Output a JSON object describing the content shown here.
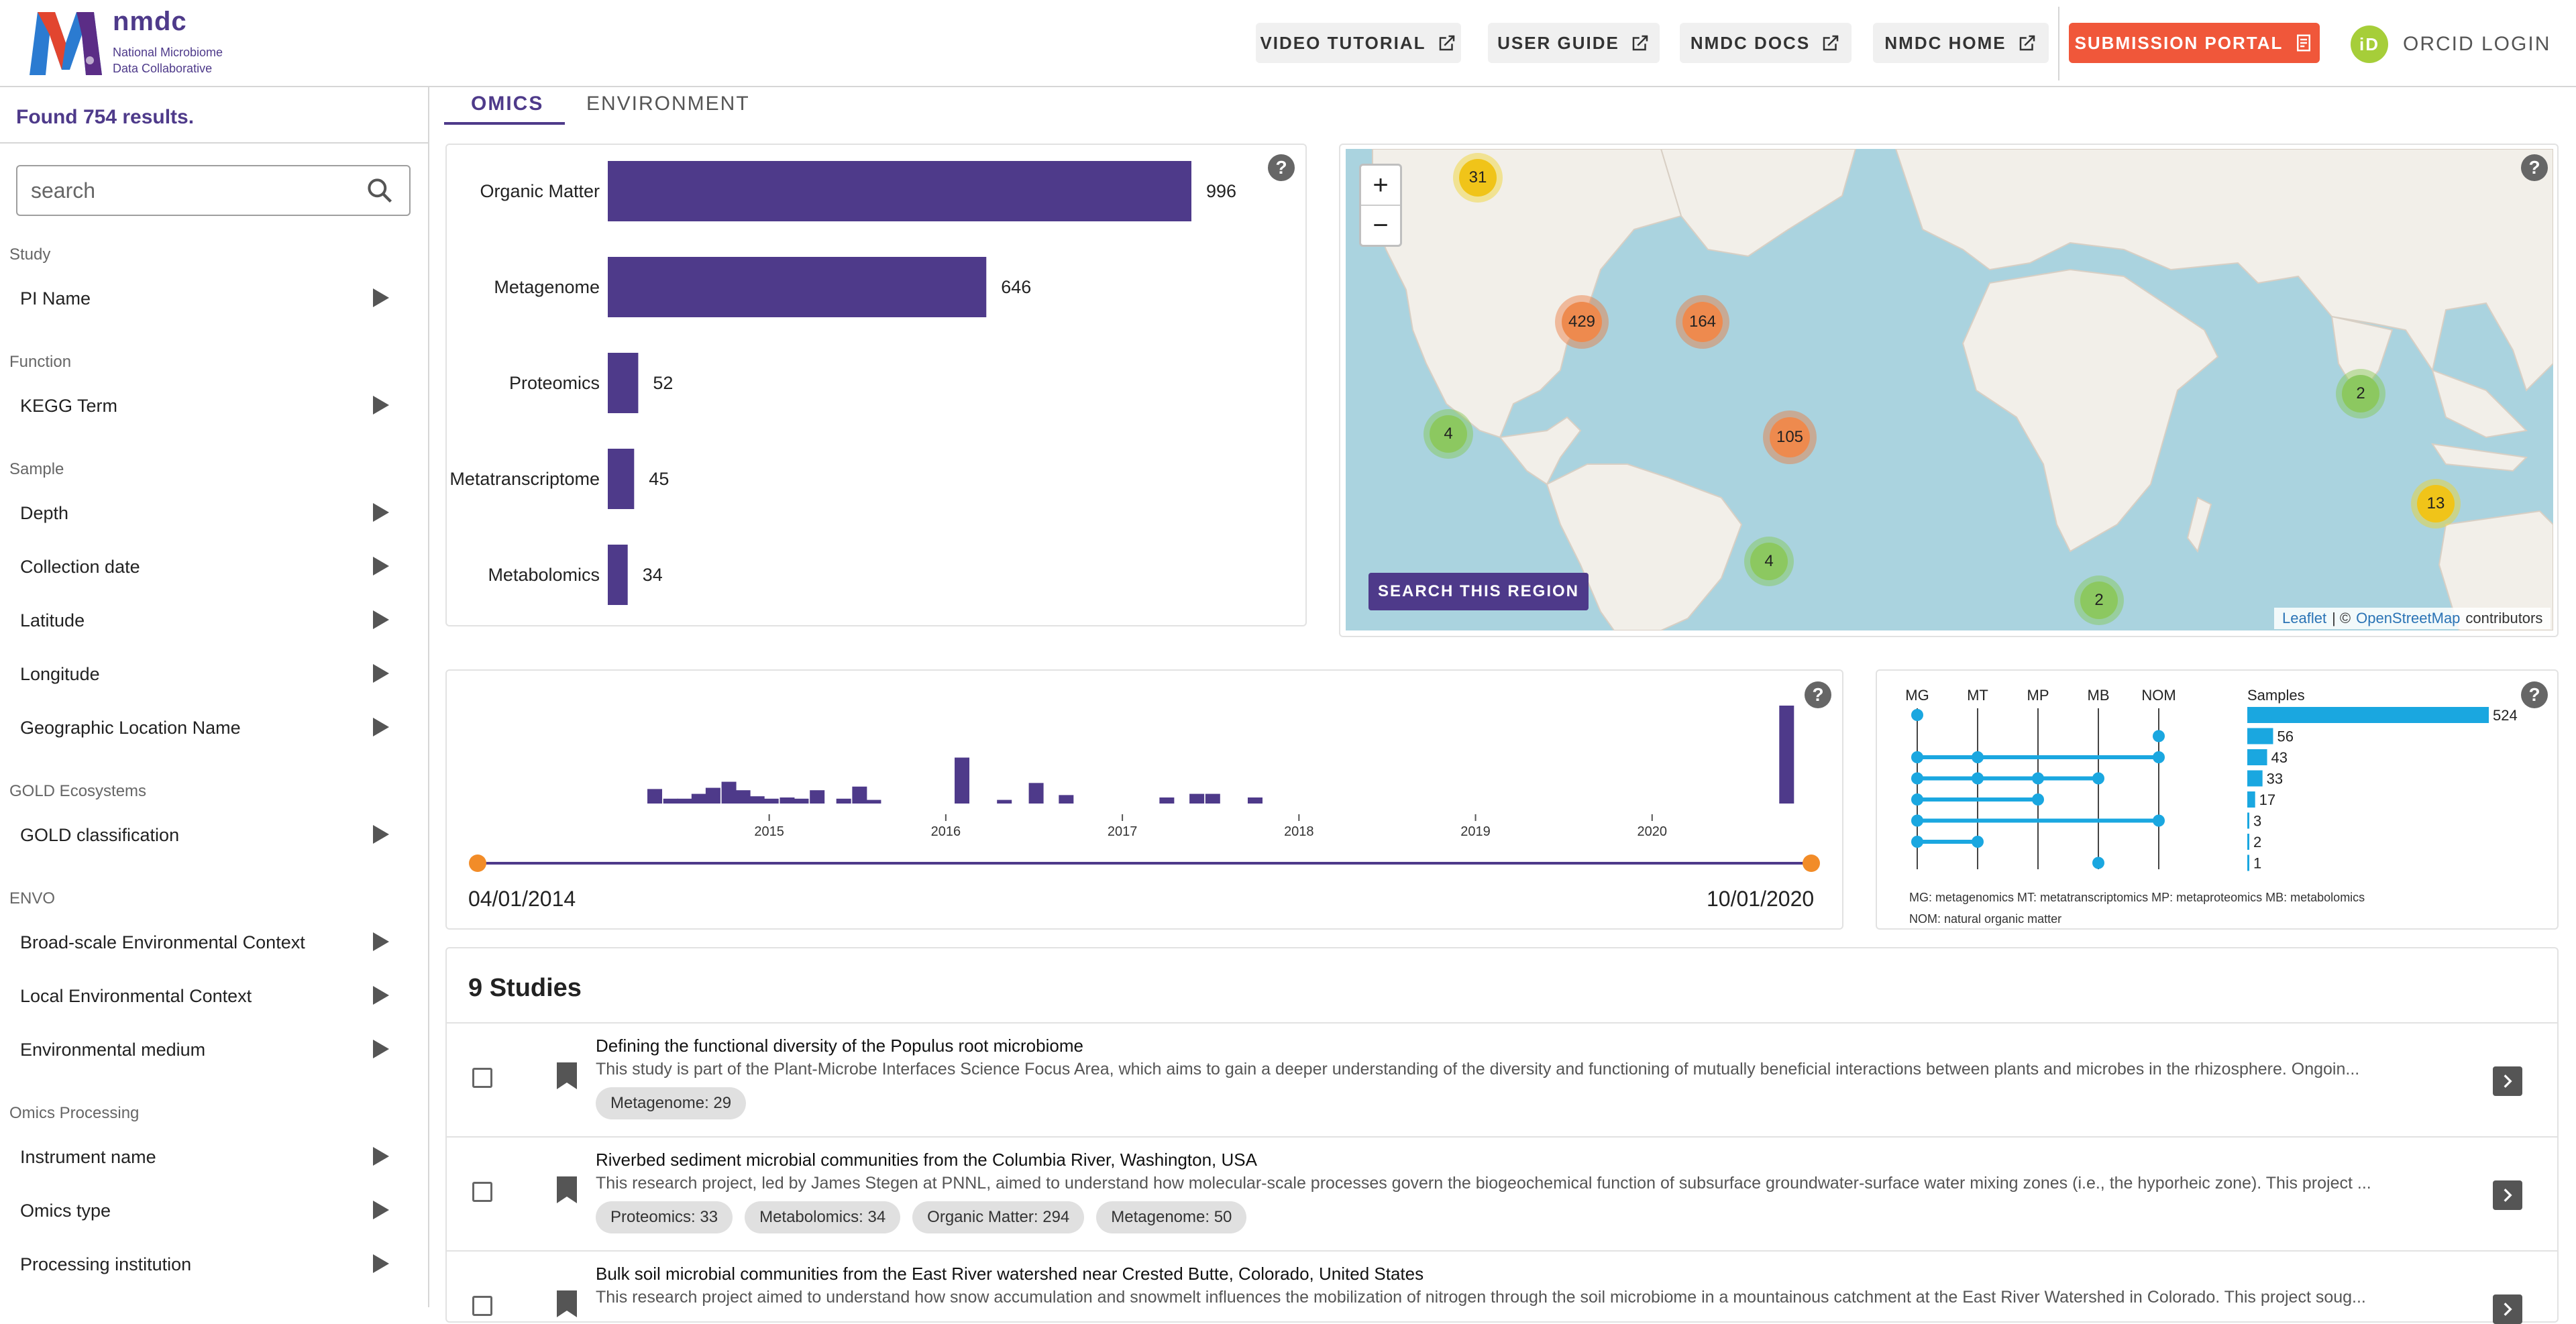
{
  "header": {
    "logo_word": "nmdc",
    "logo_sub_1": "National Microbiome",
    "logo_sub_2": "Data Collaborative",
    "buttons": [
      {
        "label": "VIDEO TUTORIAL"
      },
      {
        "label": "USER GUIDE"
      },
      {
        "label": "NMDC DOCS"
      },
      {
        "label": "NMDC HOME"
      },
      {
        "label": "SUBMISSION PORTAL"
      }
    ],
    "orcid_icon_text": "iD",
    "orcid_label": "ORCID LOGIN",
    "colors": {
      "brand": "#4e3a8a",
      "submission": "#f0573a",
      "orcid": "#a6ce39"
    }
  },
  "sidebar": {
    "found": "Found 754 results.",
    "search_placeholder": "search",
    "sections": [
      {
        "title": "Study",
        "items": [
          "PI Name"
        ]
      },
      {
        "title": "Function",
        "items": [
          "KEGG Term"
        ]
      },
      {
        "title": "Sample",
        "items": [
          "Depth",
          "Collection date",
          "Latitude",
          "Longitude",
          "Geographic Location Name"
        ]
      },
      {
        "title": "GOLD Ecosystems",
        "items": [
          "GOLD classification"
        ]
      },
      {
        "title": "ENVO",
        "items": [
          "Broad-scale Environmental Context",
          "Local Environmental Context",
          "Environmental medium"
        ]
      },
      {
        "title": "Omics Processing",
        "items": [
          "Instrument name",
          "Omics type",
          "Processing institution"
        ]
      }
    ]
  },
  "tabs": [
    {
      "label": "OMICS"
    },
    {
      "label": "ENVIRONMENT"
    }
  ],
  "help_icon": "?",
  "chart_data": [
    {
      "type": "bar",
      "orientation": "horizontal",
      "categories": [
        "Organic Matter",
        "Metagenome",
        "Proteomics",
        "Metatranscriptome",
        "Metabolomics"
      ],
      "values": [
        996,
        646,
        52,
        45,
        34
      ],
      "color": "#4e3a8a"
    },
    {
      "type": "bar",
      "x_ticks": [
        "2015",
        "2016",
        "2017",
        "2018",
        "2019",
        "2020"
      ],
      "bars": [
        {
          "x": 2014.31,
          "v": 12
        },
        {
          "x": 2014.4,
          "v": 4
        },
        {
          "x": 2014.48,
          "v": 4
        },
        {
          "x": 2014.56,
          "v": 8
        },
        {
          "x": 2014.64,
          "v": 13
        },
        {
          "x": 2014.73,
          "v": 18
        },
        {
          "x": 2014.81,
          "v": 11
        },
        {
          "x": 2014.89,
          "v": 6
        },
        {
          "x": 2014.97,
          "v": 4
        },
        {
          "x": 2015.06,
          "v": 5
        },
        {
          "x": 2015.14,
          "v": 4
        },
        {
          "x": 2015.23,
          "v": 11
        },
        {
          "x": 2015.38,
          "v": 4
        },
        {
          "x": 2015.47,
          "v": 14
        },
        {
          "x": 2015.55,
          "v": 3
        },
        {
          "x": 2016.05,
          "v": 38
        },
        {
          "x": 2016.29,
          "v": 3
        },
        {
          "x": 2016.47,
          "v": 17
        },
        {
          "x": 2016.64,
          "v": 7
        },
        {
          "x": 2017.21,
          "v": 5
        },
        {
          "x": 2017.38,
          "v": 8
        },
        {
          "x": 2017.47,
          "v": 8
        },
        {
          "x": 2017.71,
          "v": 5
        },
        {
          "x": 2020.72,
          "v": 81
        }
      ],
      "xlim": [
        2013.25,
        2021.0
      ],
      "range_start": "04/01/2014",
      "range_end": "10/01/2020",
      "color": "#4e3a8a",
      "handle_color": "#f28c28"
    },
    {
      "type": "upset",
      "sets": [
        "MG",
        "MT",
        "MP",
        "MB",
        "NOM"
      ],
      "rows": [
        {
          "members": [
            "MG"
          ],
          "value": 524
        },
        {
          "members": [
            "NOM"
          ],
          "value": 56
        },
        {
          "members": [
            "MG",
            "MT",
            "NOM"
          ],
          "value": 43
        },
        {
          "members": [
            "MG",
            "MT",
            "MP",
            "MB"
          ],
          "value": 33
        },
        {
          "members": [
            "MG",
            "MP"
          ],
          "value": 17
        },
        {
          "members": [
            "MG",
            "NOM"
          ],
          "value": 3
        },
        {
          "members": [
            "MG",
            "MT"
          ],
          "value": 2
        },
        {
          "members": [
            "MB"
          ],
          "value": 1
        }
      ],
      "bar_title": "Samples",
      "color": "#1aa7e0",
      "legend_1": "MG: metagenomics     MT: metatranscriptomics     MP: metaproteomics     MB: metabolomics",
      "legend_2": "NOM: natural organic matter"
    }
  ],
  "map": {
    "zoom_in": "+",
    "zoom_out": "−",
    "search_region": "SEARCH THIS REGION",
    "attribution_leaflet": "Leaflet",
    "attribution_sep": "| ©",
    "attribution_osm": "OpenStreetMap",
    "attribution_tail": "contributors",
    "clusters": [
      {
        "count": "31",
        "level": "yellow"
      },
      {
        "count": "429",
        "level": "orange"
      },
      {
        "count": "164",
        "level": "orange"
      },
      {
        "count": "105",
        "level": "orange"
      },
      {
        "count": "4",
        "level": "green"
      },
      {
        "count": "4",
        "level": "green"
      },
      {
        "count": "2",
        "level": "green"
      },
      {
        "count": "2",
        "level": "green"
      },
      {
        "count": "13",
        "level": "yellow"
      }
    ],
    "colors": {
      "water": "#aad3df",
      "land": "#f2efe9"
    }
  },
  "studies": {
    "title": "9 Studies",
    "items": [
      {
        "title": "Defining the functional diversity of the Populus root microbiome",
        "desc": "This study is part of the Plant-Microbe Interfaces Science Focus Area, which aims to gain a deeper understanding of the diversity and functioning of mutually beneficial interactions between plants and microbes in the rhizosphere. Ongoin...",
        "chips": [
          "Metagenome: 29"
        ]
      },
      {
        "title": "Riverbed sediment microbial communities from the Columbia River, Washington, USA",
        "desc": "This research project, led by James Stegen at PNNL, aimed to understand how molecular-scale processes govern the biogeochemical function of subsurface groundwater-surface water mixing zones (i.e., the hyporheic zone). This project ...",
        "chips": [
          "Proteomics: 33",
          "Metabolomics: 34",
          "Organic Matter: 294",
          "Metagenome: 50"
        ]
      },
      {
        "title": "Bulk soil microbial communities from the East River watershed near Crested Butte, Colorado, United States",
        "desc": "This research project aimed to understand how snow accumulation and snowmelt influences the mobilization of nitrogen through the soil microbiome in a mountainous catchment at the East River Watershed in Colorado. This project soug...",
        "chips": []
      }
    ]
  }
}
